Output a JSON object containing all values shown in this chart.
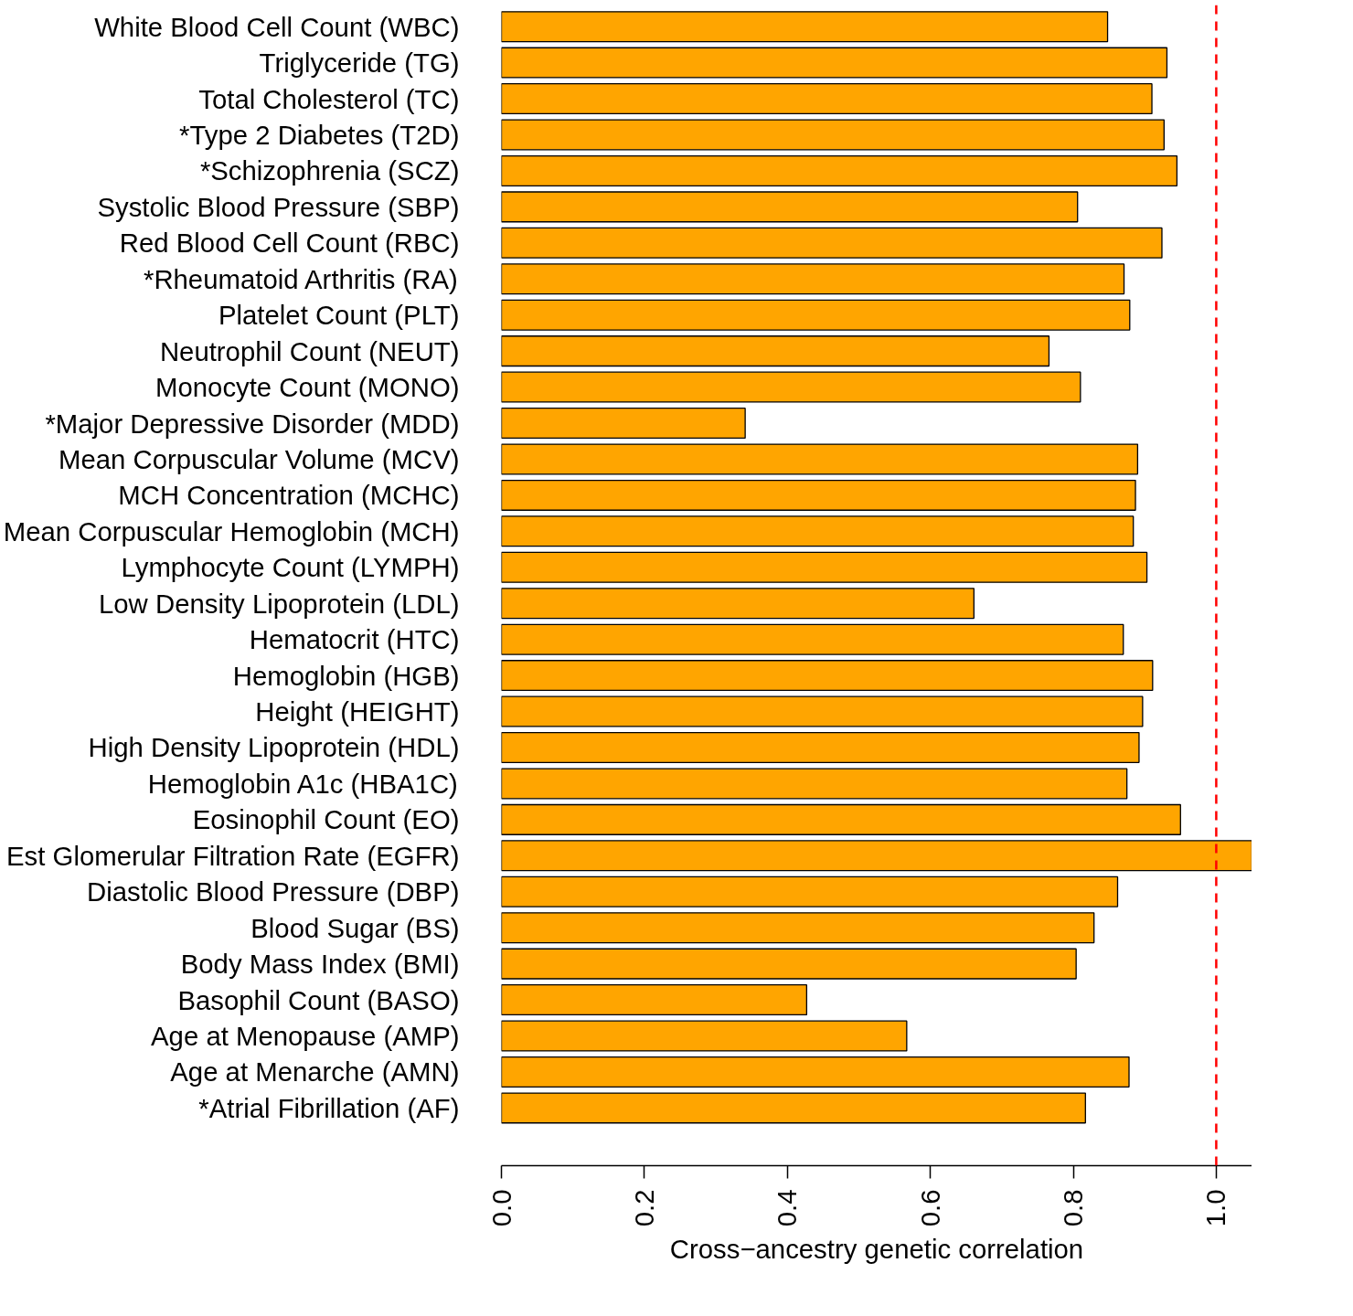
{
  "chart_data": {
    "type": "bar",
    "orientation": "horizontal",
    "xlabel": "Cross−ancestry genetic correlation",
    "categories": [
      "White Blood Cell Count (WBC)",
      "Triglyceride (TG)",
      "Total Cholesterol (TC)",
      "*Type 2 Diabetes (T2D)",
      "*Schizophrenia (SCZ)",
      "Systolic Blood Pressure (SBP)",
      "Red Blood Cell Count (RBC)",
      "*Rheumatoid Arthritis (RA)",
      "Platelet Count (PLT)",
      "Neutrophil Count (NEUT)",
      "Monocyte Count (MONO)",
      "*Major Depressive Disorder (MDD)",
      "Mean Corpuscular Volume (MCV)",
      "MCH Concentration (MCHC)",
      "Mean Corpuscular Hemoglobin (MCH)",
      "Lymphocyte Count (LYMPH)",
      "Low Density Lipoprotein (LDL)",
      "Hematocrit (HTC)",
      "Hemoglobin (HGB)",
      "Height (HEIGHT)",
      "High Density Lipoprotein (HDL)",
      "Hemoglobin A1c (HBA1C)",
      "Eosinophil Count (EO)",
      "Est Glomerular Filtration Rate (EGFR)",
      "Diastolic Blood Pressure (DBP)",
      "Blood Sugar (BS)",
      "Body Mass Index (BMI)",
      "Basophil Count (BASO)",
      "Age at Menopause (AMP)",
      "Age at Menarche (AMN)",
      "*Atrial Fibrillation (AF)"
    ],
    "values": [
      0.848,
      0.931,
      0.91,
      0.927,
      0.945,
      0.806,
      0.924,
      0.871,
      0.879,
      0.766,
      0.81,
      0.341,
      0.89,
      0.887,
      0.884,
      0.903,
      0.661,
      0.87,
      0.911,
      0.897,
      0.892,
      0.875,
      0.95,
      1.05,
      0.862,
      0.829,
      0.804,
      0.427,
      0.567,
      0.878,
      0.817
    ],
    "color": "#ffa500",
    "xlim": [
      0,
      1.05
    ],
    "xticks": [
      {
        "value": 0,
        "label": "0.0"
      },
      {
        "value": 0.2,
        "label": "0.2"
      },
      {
        "value": 0.4,
        "label": "0.4"
      },
      {
        "value": 0.6,
        "label": "0.6"
      },
      {
        "value": 0.8,
        "label": "0.8"
      },
      {
        "value": 1,
        "label": "1.0"
      }
    ],
    "ref_lines": [
      {
        "axis": "x",
        "value": 1,
        "label": null,
        "color": "#ff0000",
        "line_style": "dashed"
      }
    ],
    "grid": false
  }
}
